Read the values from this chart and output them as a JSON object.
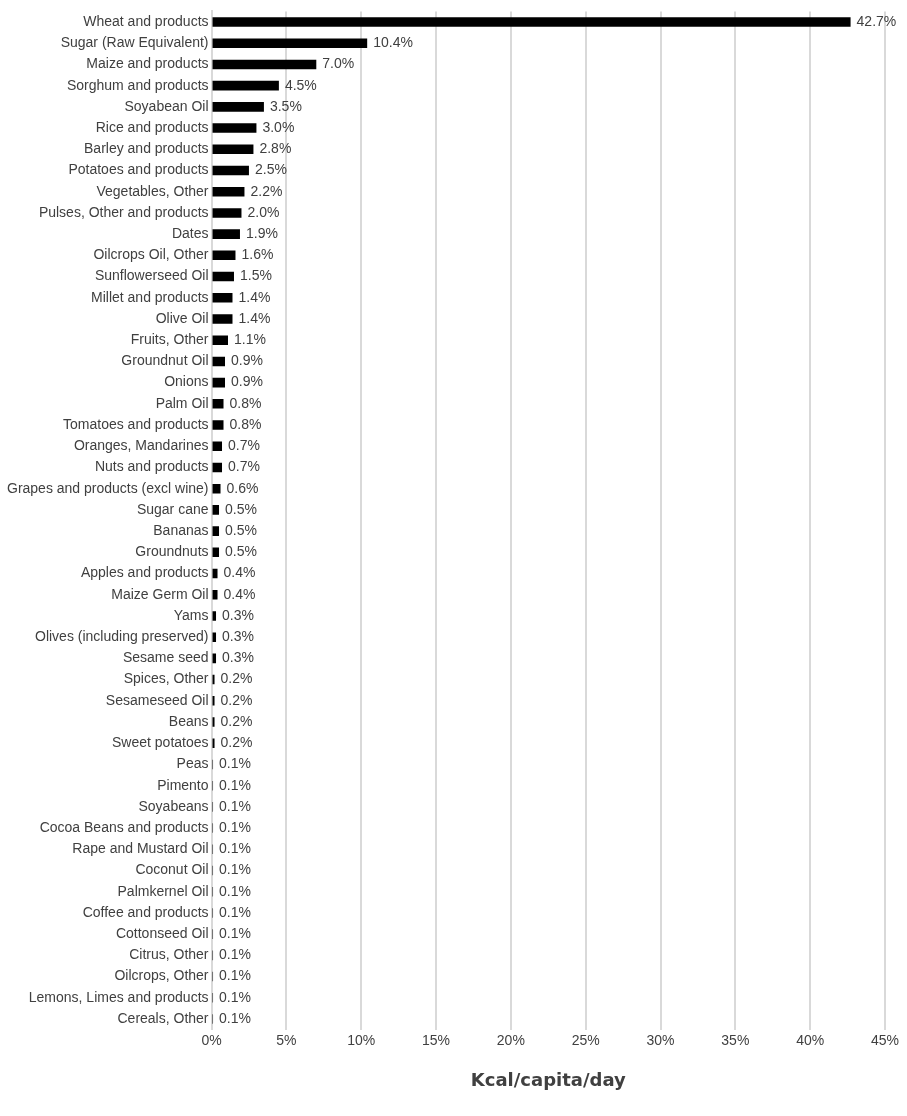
{
  "chart_data": {
    "type": "bar",
    "orientation": "horizontal",
    "xlabel": "Kcal/capita/day",
    "categories": [
      "Wheat and products",
      "Sugar (Raw Equivalent)",
      "Maize and products",
      "Sorghum and products",
      "Soyabean Oil",
      "Rice and products",
      "Barley and products",
      "Potatoes and products",
      "Vegetables, Other",
      "Pulses, Other and products",
      "Dates",
      "Oilcrops Oil, Other",
      "Sunflowerseed Oil",
      "Millet and products",
      "Olive Oil",
      "Fruits, Other",
      "Groundnut Oil",
      "Onions",
      "Palm Oil",
      "Tomatoes and products",
      "Oranges, Mandarines",
      "Nuts and products",
      "Grapes and products (excl wine)",
      "Sugar cane",
      "Bananas",
      "Groundnuts",
      "Apples and products",
      "Maize Germ Oil",
      "Yams",
      "Olives (including preserved)",
      "Sesame seed",
      "Spices, Other",
      "Sesameseed Oil",
      "Beans",
      "Sweet potatoes",
      "Peas",
      "Pimento",
      "Soyabeans",
      "Cocoa Beans and products",
      "Rape and Mustard Oil",
      "Coconut Oil",
      "Palmkernel Oil",
      "Coffee and products",
      "Cottonseed Oil",
      "Citrus, Other",
      "Oilcrops, Other",
      "Lemons, Limes and products",
      "Cereals, Other"
    ],
    "values": [
      42.7,
      10.4,
      7.0,
      4.5,
      3.5,
      3.0,
      2.8,
      2.5,
      2.2,
      2.0,
      1.9,
      1.6,
      1.5,
      1.4,
      1.4,
      1.1,
      0.9,
      0.9,
      0.8,
      0.8,
      0.7,
      0.7,
      0.6,
      0.5,
      0.5,
      0.5,
      0.4,
      0.4,
      0.3,
      0.3,
      0.3,
      0.2,
      0.2,
      0.2,
      0.2,
      0.1,
      0.1,
      0.1,
      0.1,
      0.1,
      0.1,
      0.1,
      0.1,
      0.1,
      0.1,
      0.1,
      0.1,
      0.1
    ],
    "value_labels": [
      "42.7%",
      "10.4%",
      "7.0%",
      "4.5%",
      "3.5%",
      "3.0%",
      "2.8%",
      "2.5%",
      "2.2%",
      "2.0%",
      "1.9%",
      "1.6%",
      "1.5%",
      "1.4%",
      "1.4%",
      "1.1%",
      "0.9%",
      "0.9%",
      "0.8%",
      "0.8%",
      "0.7%",
      "0.7%",
      "0.6%",
      "0.5%",
      "0.5%",
      "0.5%",
      "0.4%",
      "0.4%",
      "0.3%",
      "0.3%",
      "0.3%",
      "0.2%",
      "0.2%",
      "0.2%",
      "0.2%",
      "0.1%",
      "0.1%",
      "0.1%",
      "0.1%",
      "0.1%",
      "0.1%",
      "0.1%",
      "0.1%",
      "0.1%",
      "0.1%",
      "0.1%",
      "0.1%",
      "0.1%"
    ],
    "color": "#000000",
    "xlim": [
      0,
      45
    ],
    "xticks": [
      {
        "value": 0,
        "label": "0%"
      },
      {
        "value": 5,
        "label": "5%"
      },
      {
        "value": 10,
        "label": "10%"
      },
      {
        "value": 15,
        "label": "15%"
      },
      {
        "value": 20,
        "label": "20%"
      },
      {
        "value": 25,
        "label": "25%"
      },
      {
        "value": 30,
        "label": "30%"
      },
      {
        "value": 35,
        "label": "35%"
      },
      {
        "value": 40,
        "label": "40%"
      },
      {
        "value": 45,
        "label": "45%"
      }
    ],
    "grid": "x",
    "legend": false
  }
}
